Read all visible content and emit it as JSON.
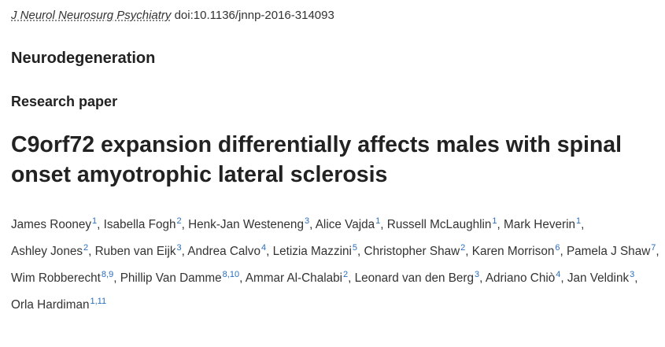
{
  "citation": {
    "journal": "J Neurol Neurosurg Psychiatry",
    "doi": "doi:10.1136/jnnp-2016-314093"
  },
  "section_label": "Neurodegeneration",
  "article_type": "Research paper",
  "title": "C9orf72 expansion differentially affects males with spinal onset amyotrophic lateral sclerosis",
  "colors": {
    "text": "#333333",
    "heading": "#222222",
    "affiliation_link": "#2a6ebb"
  },
  "authors": [
    {
      "name": "James Rooney",
      "affiliations": "1"
    },
    {
      "name": "Isabella Fogh",
      "affiliations": "2"
    },
    {
      "name": "Henk-Jan Westeneng",
      "affiliations": "3"
    },
    {
      "name": "Alice Vajda",
      "affiliations": "1"
    },
    {
      "name": "Russell McLaughlin",
      "affiliations": "1"
    },
    {
      "name": "Mark Heverin",
      "affiliations": "1"
    },
    {
      "name": "Ashley Jones",
      "affiliations": "2"
    },
    {
      "name": "Ruben van Eijk",
      "affiliations": "3"
    },
    {
      "name": "Andrea Calvo",
      "affiliations": "4"
    },
    {
      "name": "Letizia Mazzini",
      "affiliations": "5"
    },
    {
      "name": "Christopher Shaw",
      "affiliations": "2"
    },
    {
      "name": "Karen Morrison",
      "affiliations": "6"
    },
    {
      "name": "Pamela J Shaw",
      "affiliations": "7"
    },
    {
      "name": "Wim Robberecht",
      "affiliations": "8,9"
    },
    {
      "name": "Phillip Van Damme",
      "affiliations": "8,10"
    },
    {
      "name": "Ammar Al-Chalabi",
      "affiliations": "2"
    },
    {
      "name": "Leonard van den Berg",
      "affiliations": "3"
    },
    {
      "name": "Adriano Chiò",
      "affiliations": "4"
    },
    {
      "name": "Jan Veldink",
      "affiliations": "3"
    },
    {
      "name": "Orla Hardiman",
      "affiliations": "1,11"
    }
  ]
}
